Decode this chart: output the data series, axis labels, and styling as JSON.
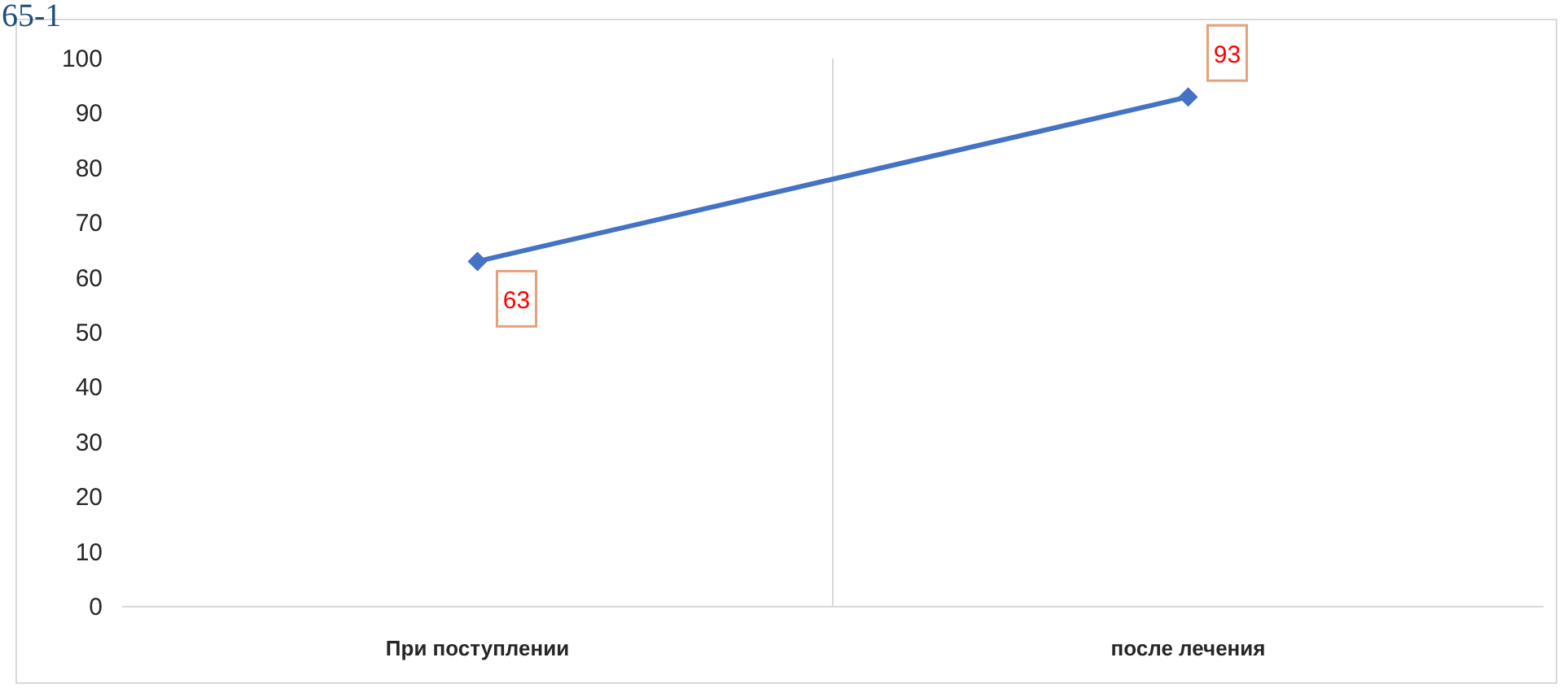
{
  "chart_data": {
    "type": "line",
    "categories": [
      "При поступлении",
      "после лечения"
    ],
    "series": [
      {
        "color": "#4472c4",
        "values": [
          63,
          93
        ]
      }
    ],
    "ylim": [
      0,
      100
    ],
    "yticks": [
      0,
      10,
      20,
      30,
      40,
      50,
      60,
      70,
      80,
      90,
      100
    ],
    "grid": "x",
    "marker": "diamond",
    "data_labels": true,
    "annotations": [
      "65-1"
    ]
  }
}
